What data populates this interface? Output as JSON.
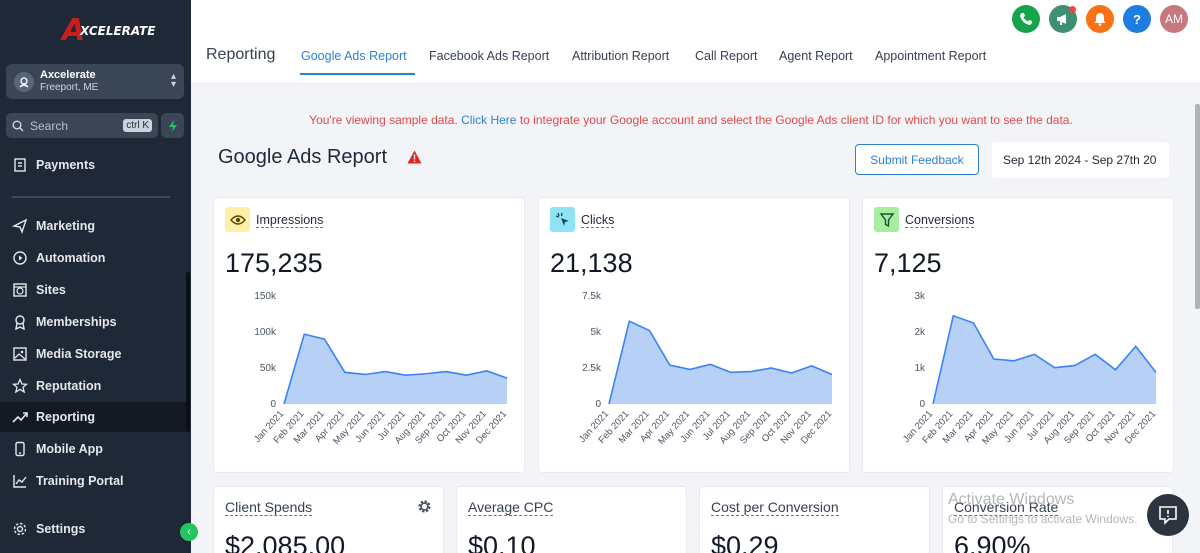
{
  "sidebar": {
    "logo": "XCELERATE",
    "account": {
      "name": "Axcelerate",
      "location": "Freeport, ME"
    },
    "search": {
      "label": "Search",
      "shortcut": "ctrl K"
    },
    "items": [
      {
        "label": "Payments",
        "icon": "receipt-icon"
      },
      {
        "label": "Marketing",
        "icon": "send-icon"
      },
      {
        "label": "Automation",
        "icon": "play-circle-icon"
      },
      {
        "label": "Sites",
        "icon": "globe-box-icon"
      },
      {
        "label": "Memberships",
        "icon": "badge-icon"
      },
      {
        "label": "Media Storage",
        "icon": "image-icon"
      },
      {
        "label": "Reputation",
        "icon": "star-icon"
      },
      {
        "label": "Reporting",
        "icon": "trend-icon",
        "active": true
      },
      {
        "label": "Mobile App",
        "icon": "phone-icon"
      },
      {
        "label": "Training Portal",
        "icon": "chart-icon"
      },
      {
        "label": "Settings",
        "icon": "gear-icon"
      }
    ]
  },
  "header": {
    "title": "Reporting",
    "tabs": [
      {
        "label": "Google Ads Report",
        "active": true
      },
      {
        "label": "Facebook Ads Report"
      },
      {
        "label": "Attribution Report"
      },
      {
        "label": "Call Report"
      },
      {
        "label": "Agent Report"
      },
      {
        "label": "Appointment Report"
      }
    ],
    "avatar_initials": "AM",
    "help_glyph": "?"
  },
  "notice": {
    "prefix": "You're viewing sample data.",
    "link": "Click Here",
    "suffix": "to integrate your Google account and select the Google Ads client ID for which you want to see the data."
  },
  "report": {
    "title": "Google Ads Report",
    "feedback_label": "Submit Feedback",
    "date_range": "Sep 12th 2024 - Sep 27th 20"
  },
  "metrics": [
    {
      "label": "Impressions",
      "value": "175,235",
      "icon": "eye-icon",
      "icon_bg": "#fdf0a8",
      "yticks": [
        "150k",
        "100k",
        "50k",
        "0"
      ]
    },
    {
      "label": "Clicks",
      "value": "21,138",
      "icon": "cursor-click-icon",
      "icon_bg": "#8fe3f5",
      "yticks": [
        "7.5k",
        "5k",
        "2.5k",
        "0"
      ]
    },
    {
      "label": "Conversions",
      "value": "7,125",
      "icon": "funnel-icon",
      "icon_bg": "#a7ef9f",
      "yticks": [
        "3k",
        "2k",
        "1k",
        "0"
      ]
    }
  ],
  "chart_data": [
    {
      "type": "area",
      "title": "Impressions",
      "x": [
        "Jan 2021",
        "Feb 2021",
        "Mar 2021",
        "Apr 2021",
        "May 2021",
        "Jun 2021",
        "Jul 2021",
        "Aug 2021",
        "Sep 2021",
        "Oct 2021",
        "Nov 2021",
        "Dec 2021"
      ],
      "values": [
        0,
        97000,
        90000,
        44000,
        41000,
        45000,
        40000,
        42000,
        45000,
        40000,
        46000,
        36000
      ],
      "ylim": [
        0,
        150000
      ]
    },
    {
      "type": "area",
      "title": "Clicks",
      "x": [
        "Jan 2021",
        "Feb 2021",
        "Mar 2021",
        "Apr 2021",
        "May 2021",
        "Jun 2021",
        "Jul 2021",
        "Aug 2021",
        "Sep 2021",
        "Oct 2021",
        "Nov 2021",
        "Dec 2021"
      ],
      "values": [
        0,
        5750,
        5100,
        2700,
        2400,
        2750,
        2200,
        2250,
        2500,
        2150,
        2650,
        2050
      ],
      "ylim": [
        0,
        7500
      ]
    },
    {
      "type": "area",
      "title": "Conversions",
      "x": [
        "Jan 2021",
        "Feb 2021",
        "Mar 2021",
        "Apr 2021",
        "May 2021",
        "Jun 2021",
        "Jul 2021",
        "Aug 2021",
        "Sep 2021",
        "Oct 2021",
        "Nov 2021",
        "Dec 2021"
      ],
      "values": [
        0,
        2450,
        2250,
        1250,
        1200,
        1380,
        1010,
        1070,
        1380,
        950,
        1600,
        880
      ],
      "ylim": [
        0,
        3000
      ]
    }
  ],
  "summary_cards": [
    {
      "label": "Client Spends",
      "value": "$2,085.00"
    },
    {
      "label": "Average CPC",
      "value": "$0.10"
    },
    {
      "label": "Cost per Conversion",
      "value": "$0.29"
    },
    {
      "label": "Conversion Rate",
      "value": "6.90%"
    }
  ],
  "watermark": {
    "title": "Activate Windows",
    "subtitle": "Go to Settings to activate Windows."
  },
  "colors": {
    "sidebar_bg": "#1e2836",
    "accent": "#2f7fd1",
    "chart_fill": "#a9c8f5",
    "chart_line": "#3b82f6",
    "notice": "#e04b4b"
  }
}
